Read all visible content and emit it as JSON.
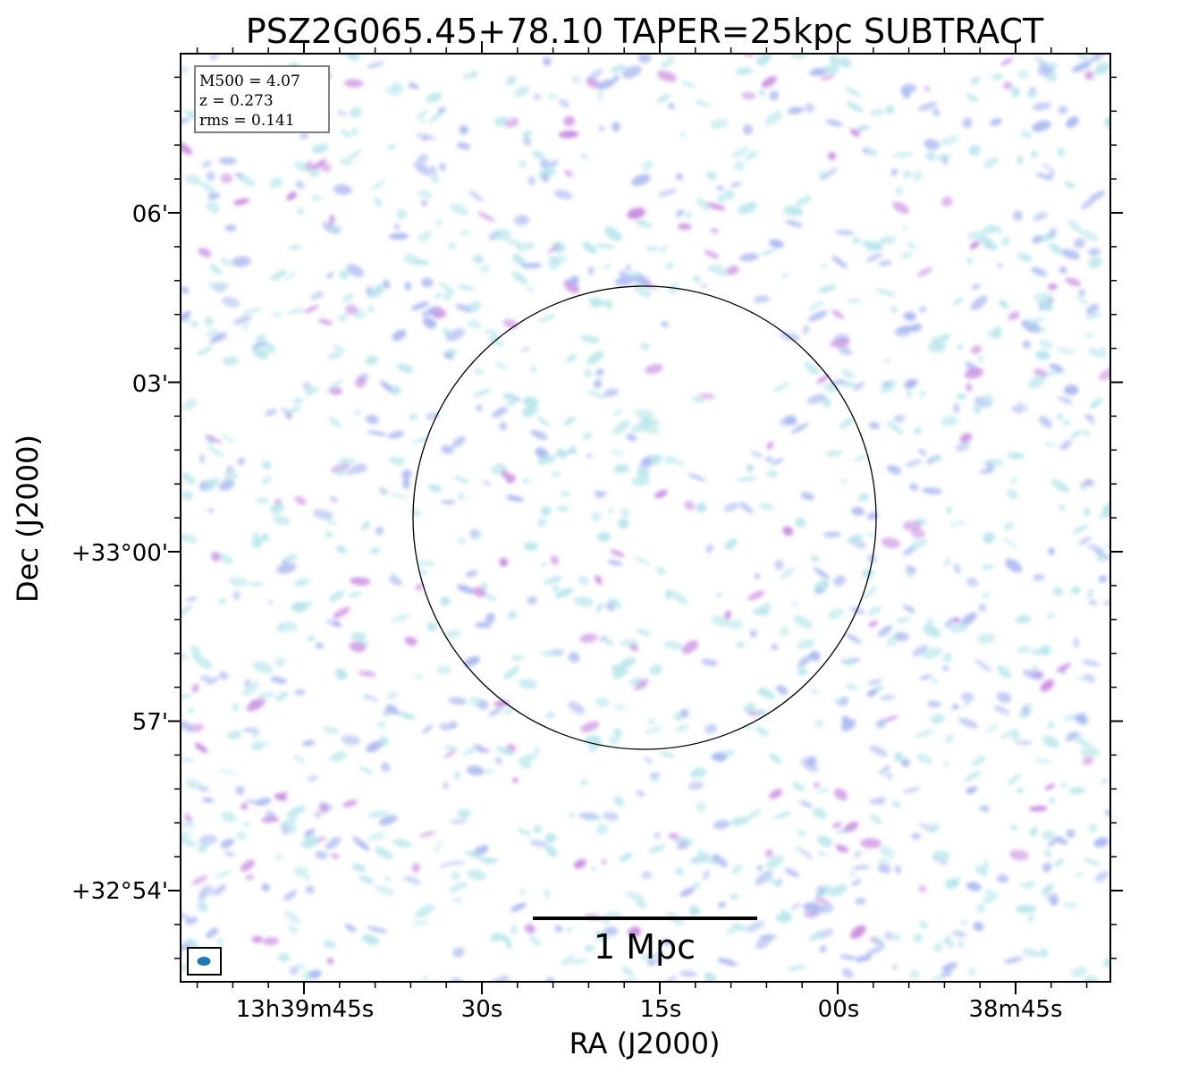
{
  "chart_data": {
    "type": "image",
    "title": "PSZ2G065.45+78.10 TAPER=25kpc SUBTRACT",
    "xlabel": "RA (J2000)",
    "ylabel": "Dec (J2000)",
    "x_ticks": [
      "13h39m45s",
      "30s",
      "15s",
      "00s",
      "38m45s"
    ],
    "y_ticks": [
      "06'",
      "03'",
      "+33°00'",
      "57'",
      "+32°54'"
    ],
    "info_box": [
      "M500 = 4.07",
      "z = 0.273",
      "rms = 0.141"
    ],
    "scalebar_label": "1 Mpc",
    "colors": {
      "low": "#b8e6ea",
      "mid": "#a9b8f0",
      "high": "#c88ae0",
      "beam": "#1f77b4"
    }
  }
}
